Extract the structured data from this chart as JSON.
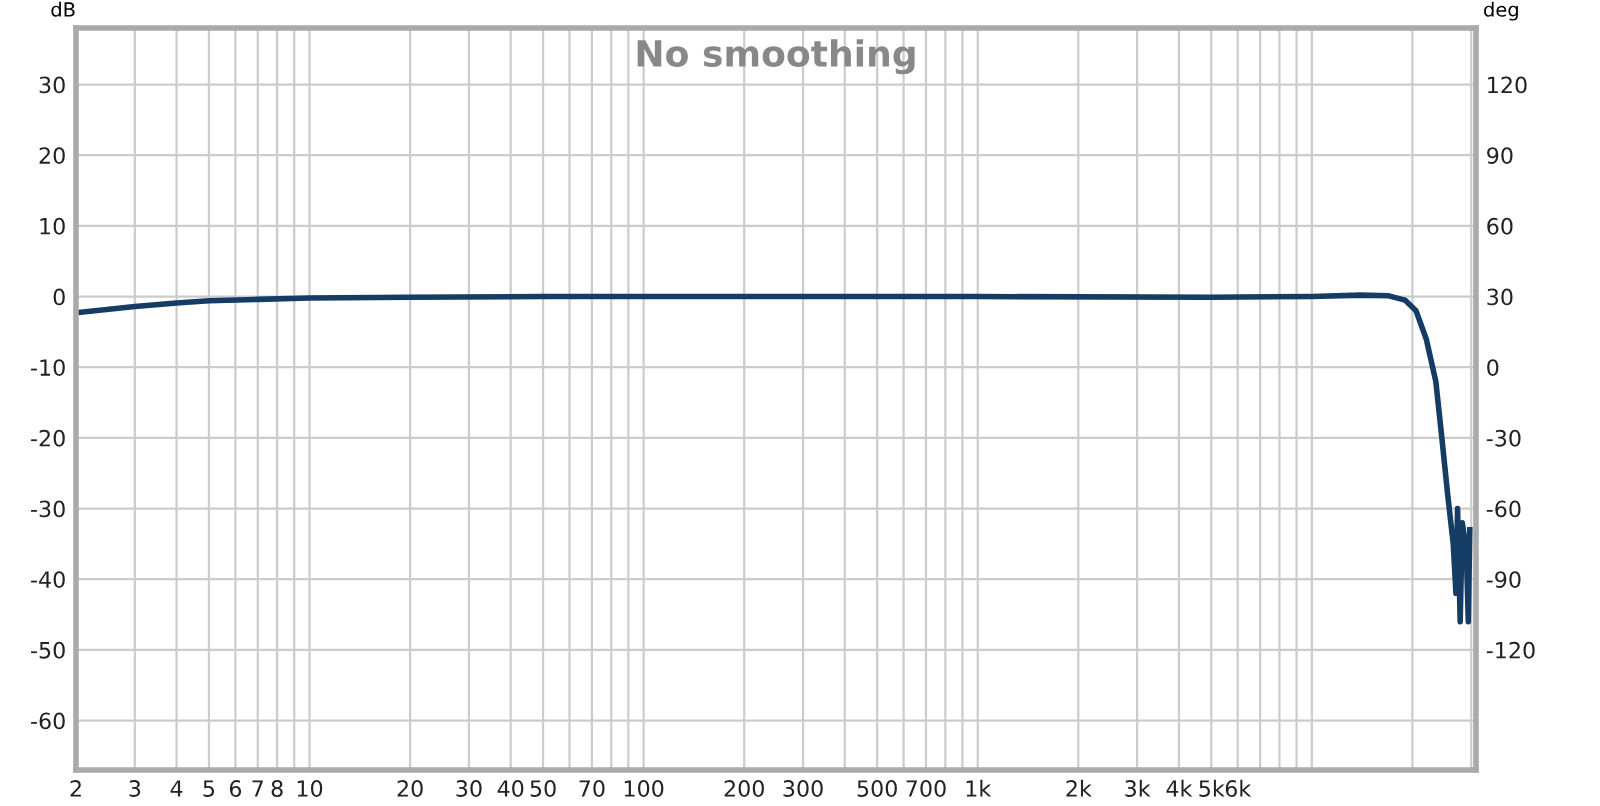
{
  "chart_data": {
    "type": "line",
    "title": "No smoothing",
    "ylabel": "dB",
    "y2label": "deg",
    "log": "x",
    "grid": true,
    "marker": "none",
    "line_style": "solid",
    "xlim": [
      2,
      31000
    ],
    "ylim": [
      -67,
      38
    ],
    "y2lim": [
      -171,
      144
    ],
    "xticks": [
      2,
      3,
      4,
      5,
      6,
      7,
      8,
      {
        "value": 9,
        "label": null
      },
      10,
      20,
      30,
      40,
      50,
      {
        "value": 60,
        "label": null
      },
      70,
      {
        "value": 80,
        "label": null
      },
      {
        "value": 90,
        "label": null
      },
      100,
      200,
      300,
      {
        "value": 400,
        "label": null
      },
      500,
      {
        "value": 600,
        "label": null
      },
      700,
      {
        "value": 800,
        "label": null
      },
      {
        "value": 900,
        "label": null
      },
      {
        "value": 1000,
        "label": "1k"
      },
      {
        "value": 2000,
        "label": "2k"
      },
      {
        "value": 3000,
        "label": "3k"
      },
      {
        "value": 4000,
        "label": "4k"
      },
      {
        "value": 5000,
        "label": "5k"
      },
      {
        "value": 6000,
        "label": "6k"
      },
      {
        "value": 7000,
        "label": null
      },
      {
        "value": 8000,
        "label": null
      },
      {
        "value": 9000,
        "label": null
      },
      {
        "value": 10000,
        "label": null
      },
      {
        "value": 20000,
        "label": null
      },
      {
        "value": 30000,
        "label": null
      }
    ],
    "yticks": [
      -60,
      -50,
      -40,
      -30,
      -20,
      -10,
      0,
      10,
      20,
      30
    ],
    "y2ticks": [
      -120,
      -90,
      -60,
      -30,
      0,
      30,
      60,
      90,
      120
    ],
    "series": [
      {
        "color": "#143c64",
        "x": [
          2,
          3,
          4,
          5,
          7,
          10,
          20,
          50,
          1000,
          5000,
          10000,
          14000,
          17000,
          19000,
          20500,
          22000,
          23500,
          24500,
          25500,
          26500,
          27000,
          27300,
          27800,
          28200,
          29000,
          29400,
          29700
        ],
        "values": [
          -2.3,
          -1.4,
          -0.9,
          -0.6,
          -0.4,
          -0.2,
          -0.1,
          0,
          0,
          -0.1,
          0,
          0.2,
          0.1,
          -0.5,
          -2,
          -6,
          -12,
          -20,
          -28,
          -35,
          -42,
          -30,
          -46,
          -32,
          -36,
          -46,
          -33
        ]
      }
    ]
  }
}
